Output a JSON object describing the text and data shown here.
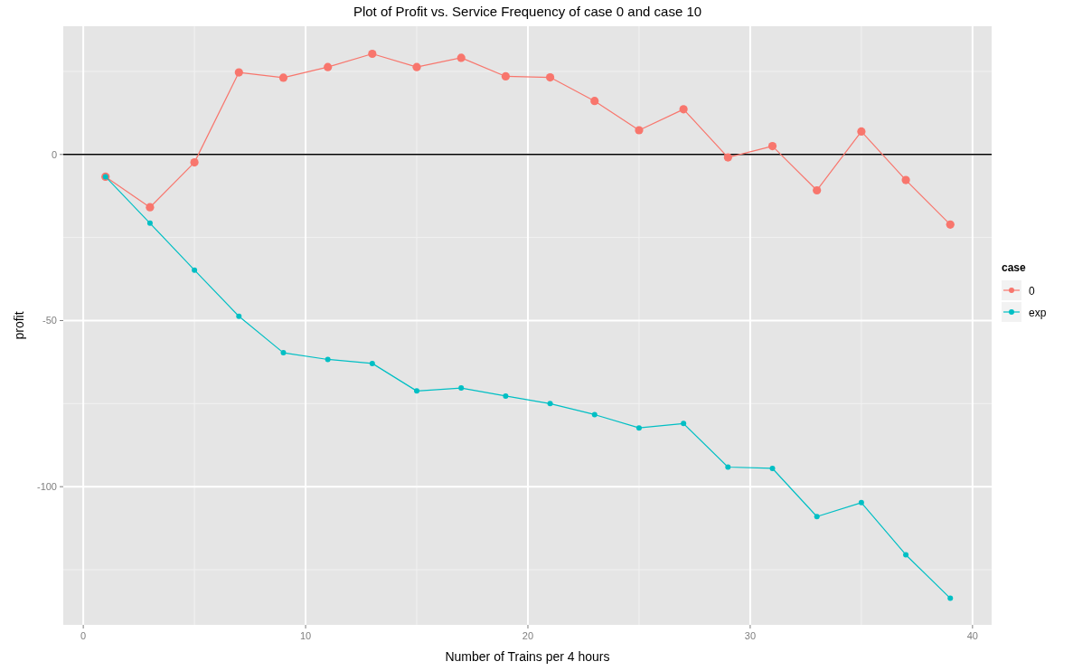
{
  "chart_data": {
    "type": "line",
    "title": "Plot of Profit vs. Service Frequency of case 0 and case 10",
    "xlabel": "Number of Trains per 4 hours",
    "ylabel": "profit",
    "legend_title": "case",
    "x": [
      1,
      3,
      5,
      7,
      9,
      11,
      13,
      15,
      17,
      19,
      21,
      23,
      25,
      27,
      29,
      31,
      33,
      35,
      37,
      39
    ],
    "series": [
      {
        "name": "0",
        "color": "#f8766d",
        "values": [
          -6.7,
          -15.9,
          -2.4,
          24.7,
          23.1,
          26.3,
          30.3,
          26.3,
          29.1,
          23.5,
          23.2,
          16.1,
          7.3,
          13.6,
          -0.9,
          2.5,
          -10.8,
          6.9,
          -7.7,
          -21.1
        ]
      },
      {
        "name": "exp",
        "color": "#00bfc4",
        "values": [
          -6.7,
          -20.7,
          -34.8,
          -48.7,
          -59.7,
          -61.7,
          -62.9,
          -71.2,
          -70.3,
          -72.7,
          -75.0,
          -78.3,
          -82.3,
          -81.0,
          -94.1,
          -94.5,
          -109.0,
          -104.8,
          -120.5,
          -133.6
        ]
      }
    ],
    "xlim": [
      -0.9,
      40.86
    ],
    "xticks": [
      0,
      10,
      20,
      30,
      40
    ],
    "ylim": [
      -141.6,
      38.6
    ],
    "yticks": [
      -100,
      -50,
      0
    ],
    "ref_lines": [
      {
        "axis": "y",
        "value": 0,
        "color": "#000000"
      }
    ],
    "grid": true,
    "legend": "right",
    "marker": "circle",
    "line_style": "solid"
  }
}
